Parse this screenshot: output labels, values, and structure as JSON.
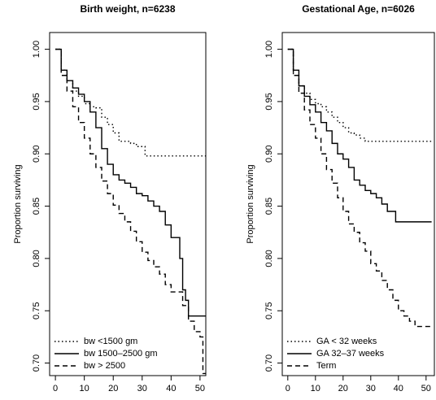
{
  "chart_data": [
    {
      "type": "step",
      "title": "Birth weight, n=6238",
      "ylabel": "Proportion surviving",
      "xlim": [
        -2,
        52
      ],
      "xticks": [
        0,
        10,
        20,
        30,
        40,
        50
      ],
      "ylim": [
        0.688,
        1.016
      ],
      "yticks": [
        {
          "value": 0.7,
          "label": "0.70"
        },
        {
          "value": 0.75,
          "label": "0.75"
        },
        {
          "value": 0.8,
          "label": "0.80"
        },
        {
          "value": 0.85,
          "label": "0.85"
        },
        {
          "value": 0.9,
          "label": "0.90"
        },
        {
          "value": 0.95,
          "label": "0.95"
        },
        {
          "value": 1.0,
          "label": "1.00"
        }
      ],
      "legend": "bottomleft",
      "series": [
        {
          "name": "bw <1500 gm",
          "color": "#000000",
          "dash": "dotted",
          "x": [
            0,
            2,
            4,
            6,
            8,
            10,
            12,
            14,
            16,
            18,
            20,
            22,
            24,
            26,
            28,
            30,
            31,
            52
          ],
          "values": [
            1.0,
            0.98,
            0.97,
            0.96,
            0.955,
            0.948,
            0.945,
            0.944,
            0.935,
            0.928,
            0.92,
            0.912,
            0.912,
            0.91,
            0.907,
            0.907,
            0.898,
            0.898
          ]
        },
        {
          "name": "bw 1500–2500 gm",
          "color": "#000000",
          "dash": "solid",
          "x": [
            0,
            2,
            4,
            6,
            8,
            10,
            12,
            14,
            16,
            18,
            20,
            22,
            24,
            26,
            28,
            30,
            32,
            34,
            36,
            38,
            40,
            42,
            43,
            44,
            45,
            46,
            47,
            52
          ],
          "values": [
            1.0,
            0.98,
            0.97,
            0.963,
            0.957,
            0.95,
            0.94,
            0.925,
            0.905,
            0.89,
            0.88,
            0.875,
            0.872,
            0.868,
            0.862,
            0.86,
            0.855,
            0.85,
            0.845,
            0.832,
            0.82,
            0.82,
            0.8,
            0.77,
            0.76,
            0.745,
            0.745,
            0.745
          ]
        },
        {
          "name": "bw > 2500",
          "color": "#000000",
          "dash": "dashed",
          "x": [
            0,
            2,
            4,
            6,
            8,
            10,
            12,
            14,
            16,
            18,
            20,
            22,
            24,
            26,
            28,
            30,
            32,
            34,
            36,
            38,
            40,
            42,
            44,
            46,
            48,
            50,
            51,
            52
          ],
          "values": [
            1.0,
            0.975,
            0.96,
            0.945,
            0.93,
            0.915,
            0.9,
            0.887,
            0.874,
            0.862,
            0.851,
            0.843,
            0.835,
            0.826,
            0.816,
            0.806,
            0.798,
            0.792,
            0.785,
            0.775,
            0.768,
            0.768,
            0.755,
            0.74,
            0.73,
            0.725,
            0.69,
            0.69
          ]
        }
      ]
    },
    {
      "type": "step",
      "title": "Gestational Age, n=6026",
      "ylabel": "Proportion surviving",
      "xlim": [
        -2,
        53
      ],
      "xticks": [
        0,
        10,
        20,
        30,
        40,
        50
      ],
      "ylim": [
        0.688,
        1.016
      ],
      "yticks": [
        {
          "value": 0.7,
          "label": "0.70"
        },
        {
          "value": 0.75,
          "label": "0.75"
        },
        {
          "value": 0.8,
          "label": "0.80"
        },
        {
          "value": 0.85,
          "label": "0.85"
        },
        {
          "value": 0.9,
          "label": "0.90"
        },
        {
          "value": 0.95,
          "label": "0.95"
        },
        {
          "value": 1.0,
          "label": "1.00"
        }
      ],
      "legend": "bottomleft",
      "series": [
        {
          "name": "GA < 32 weeks",
          "color": "#000000",
          "dash": "dotted",
          "x": [
            0,
            2,
            4,
            6,
            8,
            10,
            12,
            14,
            16,
            18,
            20,
            22,
            24,
            26,
            28,
            30,
            52
          ],
          "values": [
            1.0,
            0.975,
            0.965,
            0.958,
            0.952,
            0.948,
            0.945,
            0.94,
            0.935,
            0.93,
            0.925,
            0.92,
            0.918,
            0.915,
            0.912,
            0.912,
            0.912
          ]
        },
        {
          "name": "GA 32–37 weeks",
          "color": "#000000",
          "dash": "solid",
          "x": [
            0,
            2,
            4,
            6,
            8,
            10,
            12,
            14,
            16,
            18,
            20,
            22,
            24,
            26,
            28,
            30,
            32,
            34,
            36,
            38,
            39,
            52
          ],
          "values": [
            1.0,
            0.98,
            0.965,
            0.955,
            0.947,
            0.94,
            0.93,
            0.922,
            0.91,
            0.9,
            0.895,
            0.887,
            0.875,
            0.87,
            0.865,
            0.862,
            0.858,
            0.852,
            0.845,
            0.845,
            0.835,
            0.835
          ]
        },
        {
          "name": "Term",
          "color": "#000000",
          "dash": "dashed",
          "x": [
            0,
            2,
            4,
            6,
            8,
            10,
            12,
            14,
            16,
            18,
            20,
            22,
            24,
            26,
            28,
            30,
            32,
            34,
            36,
            38,
            40,
            42,
            44,
            46,
            52
          ],
          "values": [
            1.0,
            0.975,
            0.958,
            0.942,
            0.928,
            0.915,
            0.9,
            0.885,
            0.872,
            0.858,
            0.845,
            0.833,
            0.825,
            0.815,
            0.807,
            0.795,
            0.788,
            0.779,
            0.77,
            0.76,
            0.75,
            0.745,
            0.74,
            0.735,
            0.735
          ]
        }
      ]
    }
  ]
}
